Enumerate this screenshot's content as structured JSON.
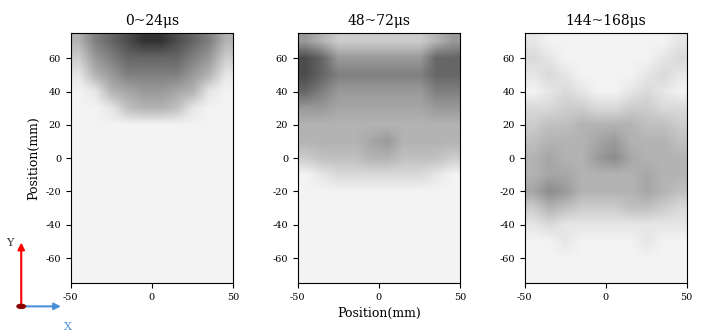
{
  "chart_data": [
    {
      "type": "heatmap",
      "title": "0~24μs",
      "ylabel": "Position(mm)",
      "xlim": [
        -50,
        50
      ],
      "ylim": [
        -75,
        75
      ],
      "xticks": [
        -50,
        0,
        50
      ],
      "yticks": [
        -60,
        -40,
        -20,
        0,
        20,
        40,
        60
      ],
      "color_range": [
        0,
        1
      ],
      "cells": [
        [
          0.3,
          0.5,
          0.6,
          0.7,
          0.8,
          0.8,
          0.7,
          0.6,
          0.5,
          0.3
        ],
        [
          0.2,
          0.4,
          0.5,
          0.6,
          0.6,
          0.6,
          0.6,
          0.5,
          0.4,
          0.2
        ],
        [
          0.1,
          0.3,
          0.4,
          0.5,
          0.5,
          0.5,
          0.5,
          0.4,
          0.3,
          0.1
        ],
        [
          0.05,
          0.1,
          0.3,
          0.35,
          0.4,
          0.4,
          0.35,
          0.3,
          0.1,
          0.05
        ],
        [
          0.05,
          0.05,
          0.1,
          0.25,
          0.3,
          0.3,
          0.25,
          0.1,
          0.05,
          0.05
        ],
        [
          0.05,
          0.05,
          0.05,
          0.05,
          0.05,
          0.05,
          0.05,
          0.05,
          0.05,
          0.05
        ],
        [
          0.05,
          0.05,
          0.05,
          0.05,
          0.05,
          0.05,
          0.05,
          0.05,
          0.05,
          0.05
        ],
        [
          0.05,
          0.05,
          0.05,
          0.05,
          0.05,
          0.05,
          0.05,
          0.05,
          0.05,
          0.05
        ],
        [
          0.05,
          0.05,
          0.05,
          0.05,
          0.05,
          0.05,
          0.05,
          0.05,
          0.05,
          0.05
        ],
        [
          0.05,
          0.05,
          0.05,
          0.05,
          0.05,
          0.05,
          0.05,
          0.05,
          0.05,
          0.05
        ],
        [
          0.05,
          0.05,
          0.05,
          0.05,
          0.05,
          0.05,
          0.05,
          0.05,
          0.05,
          0.05
        ],
        [
          0.05,
          0.05,
          0.05,
          0.05,
          0.05,
          0.05,
          0.05,
          0.05,
          0.05,
          0.05
        ],
        [
          0.05,
          0.05,
          0.05,
          0.05,
          0.05,
          0.05,
          0.05,
          0.05,
          0.05,
          0.05
        ],
        [
          0.05,
          0.05,
          0.05,
          0.05,
          0.05,
          0.05,
          0.05,
          0.05,
          0.05,
          0.05
        ],
        [
          0.05,
          0.05,
          0.05,
          0.05,
          0.05,
          0.05,
          0.05,
          0.05,
          0.05,
          0.05
        ]
      ]
    },
    {
      "type": "heatmap",
      "title": "48~72μs",
      "xlabel": "Position(mm)",
      "xlim": [
        -50,
        50
      ],
      "ylim": [
        -75,
        75
      ],
      "xticks": [
        -50,
        0,
        50
      ],
      "yticks": [
        -60,
        -40,
        -20,
        0,
        20,
        40,
        60
      ],
      "color_range": [
        0,
        1
      ],
      "cells": [
        [
          0.4,
          0.3,
          0.2,
          0.2,
          0.2,
          0.2,
          0.2,
          0.2,
          0.3,
          0.4
        ],
        [
          0.7,
          0.6,
          0.4,
          0.4,
          0.4,
          0.4,
          0.4,
          0.4,
          0.6,
          0.6
        ],
        [
          0.7,
          0.6,
          0.5,
          0.5,
          0.5,
          0.5,
          0.5,
          0.5,
          0.6,
          0.6
        ],
        [
          0.6,
          0.5,
          0.4,
          0.4,
          0.4,
          0.4,
          0.4,
          0.4,
          0.5,
          0.5
        ],
        [
          0.4,
          0.4,
          0.35,
          0.35,
          0.35,
          0.35,
          0.35,
          0.35,
          0.4,
          0.4
        ],
        [
          0.3,
          0.3,
          0.3,
          0.3,
          0.3,
          0.3,
          0.3,
          0.3,
          0.3,
          0.3
        ],
        [
          0.3,
          0.3,
          0.3,
          0.3,
          0.35,
          0.4,
          0.3,
          0.3,
          0.3,
          0.3
        ],
        [
          0.2,
          0.25,
          0.25,
          0.25,
          0.3,
          0.3,
          0.25,
          0.25,
          0.25,
          0.2
        ],
        [
          0.05,
          0.1,
          0.15,
          0.15,
          0.15,
          0.15,
          0.15,
          0.15,
          0.1,
          0.05
        ],
        [
          0.05,
          0.05,
          0.05,
          0.05,
          0.05,
          0.05,
          0.05,
          0.05,
          0.05,
          0.05
        ],
        [
          0.05,
          0.05,
          0.05,
          0.05,
          0.05,
          0.05,
          0.05,
          0.05,
          0.05,
          0.05
        ],
        [
          0.05,
          0.05,
          0.05,
          0.05,
          0.05,
          0.05,
          0.05,
          0.05,
          0.05,
          0.05
        ],
        [
          0.05,
          0.05,
          0.05,
          0.05,
          0.05,
          0.05,
          0.05,
          0.05,
          0.05,
          0.05
        ],
        [
          0.05,
          0.05,
          0.05,
          0.05,
          0.05,
          0.05,
          0.05,
          0.05,
          0.05,
          0.05
        ],
        [
          0.05,
          0.05,
          0.05,
          0.05,
          0.05,
          0.05,
          0.05,
          0.05,
          0.05,
          0.05
        ]
      ]
    },
    {
      "type": "heatmap",
      "title": "144~168μs",
      "xlim": [
        -50,
        50
      ],
      "ylim": [
        -75,
        75
      ],
      "xticks": [
        -50,
        0,
        50
      ],
      "yticks": [
        -60,
        -40,
        -20,
        0,
        20,
        40,
        60
      ],
      "color_range": [
        0,
        1
      ],
      "cells": [
        [
          0.1,
          0.05,
          0.05,
          0.05,
          0.05,
          0.05,
          0.05,
          0.05,
          0.05,
          0.1
        ],
        [
          0.15,
          0.1,
          0.05,
          0.05,
          0.05,
          0.05,
          0.05,
          0.05,
          0.1,
          0.15
        ],
        [
          0.1,
          0.15,
          0.1,
          0.05,
          0.05,
          0.05,
          0.05,
          0.1,
          0.15,
          0.1
        ],
        [
          0.05,
          0.1,
          0.15,
          0.1,
          0.05,
          0.05,
          0.1,
          0.15,
          0.1,
          0.05
        ],
        [
          0.15,
          0.15,
          0.2,
          0.2,
          0.15,
          0.15,
          0.2,
          0.2,
          0.15,
          0.15
        ],
        [
          0.2,
          0.25,
          0.25,
          0.3,
          0.3,
          0.3,
          0.3,
          0.25,
          0.25,
          0.2
        ],
        [
          0.25,
          0.3,
          0.3,
          0.3,
          0.35,
          0.4,
          0.3,
          0.3,
          0.3,
          0.25
        ],
        [
          0.3,
          0.35,
          0.3,
          0.3,
          0.4,
          0.45,
          0.35,
          0.3,
          0.3,
          0.3
        ],
        [
          0.3,
          0.35,
          0.35,
          0.3,
          0.3,
          0.3,
          0.3,
          0.35,
          0.3,
          0.3
        ],
        [
          0.35,
          0.45,
          0.4,
          0.3,
          0.3,
          0.3,
          0.3,
          0.35,
          0.3,
          0.25
        ],
        [
          0.2,
          0.3,
          0.25,
          0.2,
          0.2,
          0.2,
          0.25,
          0.25,
          0.2,
          0.15
        ],
        [
          0.1,
          0.15,
          0.1,
          0.1,
          0.1,
          0.1,
          0.1,
          0.1,
          0.1,
          0.1
        ],
        [
          0.05,
          0.05,
          0.1,
          0.05,
          0.05,
          0.05,
          0.05,
          0.1,
          0.05,
          0.05
        ],
        [
          0.05,
          0.05,
          0.05,
          0.05,
          0.05,
          0.05,
          0.05,
          0.05,
          0.05,
          0.05
        ],
        [
          0.05,
          0.05,
          0.05,
          0.05,
          0.05,
          0.05,
          0.05,
          0.05,
          0.05,
          0.05
        ]
      ]
    }
  ],
  "axes_icon": {
    "x_label": "X",
    "y_label": "Y"
  }
}
